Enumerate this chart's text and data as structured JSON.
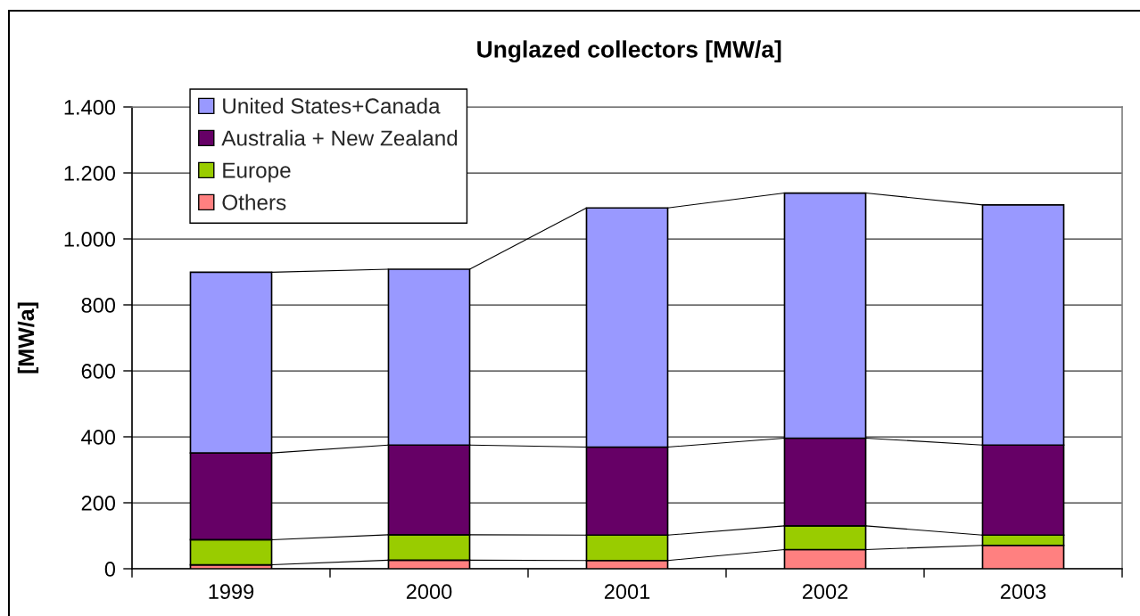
{
  "chart_data": {
    "type": "bar",
    "title": "Unglazed collectors [MW/a]",
    "ylabel": "[MW/a]",
    "categories": [
      "1999",
      "2000",
      "2001",
      "2002",
      "2003"
    ],
    "stacked": true,
    "series": [
      {
        "name": "Others",
        "color": "#ff8080",
        "values": [
          12,
          26,
          25,
          58,
          71
        ]
      },
      {
        "name": "Europe",
        "color": "#99cc00",
        "values": [
          76,
          77,
          77,
          72,
          31
        ]
      },
      {
        "name": "Australia + New Zealand",
        "color": "#660066",
        "values": [
          263,
          272,
          267,
          266,
          273
        ]
      },
      {
        "name": "United States+Canada",
        "color": "#9999ff",
        "values": [
          548,
          533,
          725,
          743,
          728
        ]
      }
    ],
    "ylim": [
      0,
      1400
    ],
    "yticks": [
      0,
      200,
      400,
      600,
      800,
      {
        "value": 1000,
        "label": "1.000"
      },
      {
        "value": 1200,
        "label": "1.200"
      },
      {
        "value": 1400,
        "label": "1.400"
      }
    ],
    "grid": "y",
    "legend": "top left"
  }
}
